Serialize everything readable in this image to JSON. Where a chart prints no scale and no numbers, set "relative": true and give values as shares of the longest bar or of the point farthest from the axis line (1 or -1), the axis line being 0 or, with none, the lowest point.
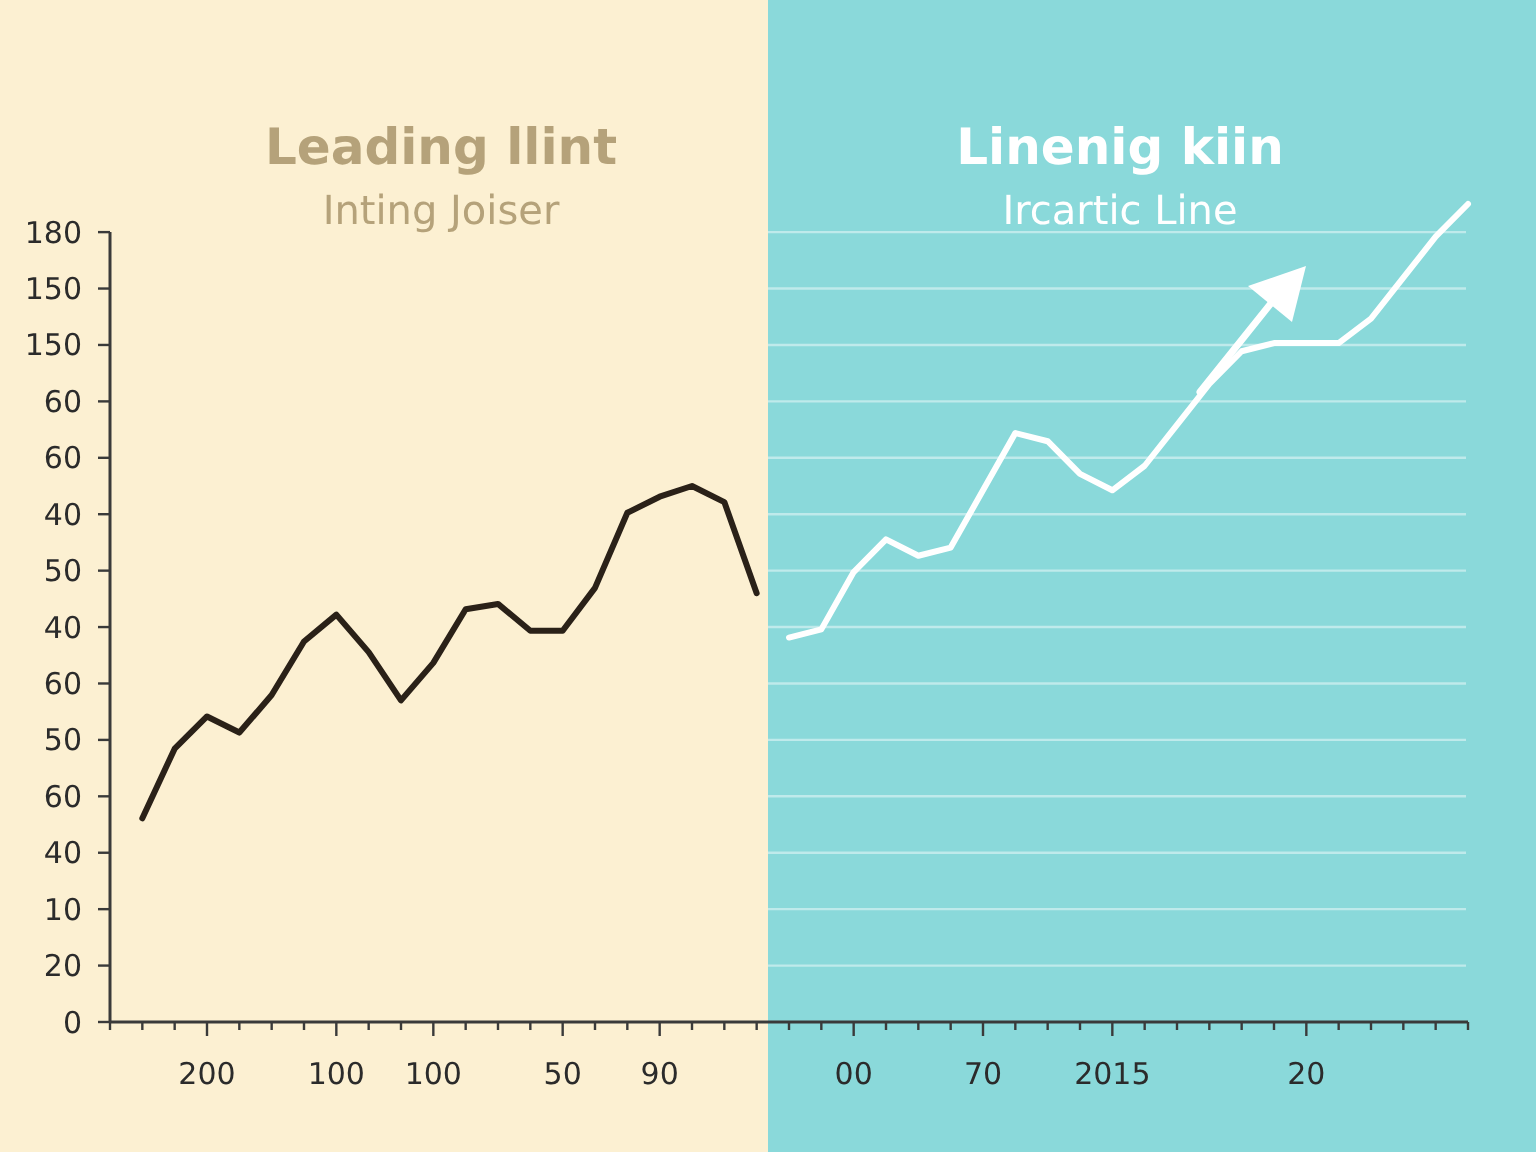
{
  "chart_data": [
    {
      "type": "line",
      "title": "Leading llint",
      "subtitle": "Inting Joiser",
      "relative": true,
      "categories": [
        null,
        null,
        null,
        "200",
        null,
        null,
        null,
        "100",
        null,
        null,
        "100",
        null,
        null,
        null,
        "50",
        null,
        null,
        "90",
        null,
        null,
        null
      ],
      "annotations": [
        "0",
        "20",
        "10",
        "40",
        "60",
        "50",
        "60",
        "40",
        "50",
        "40",
        "60",
        "60",
        "150",
        "150",
        "180"
      ],
      "series": [
        {
          "color": "#2a2118",
          "values": [
            null,
            0.38,
            0.51,
            0.57,
            0.54,
            0.61,
            0.71,
            0.76,
            0.69,
            0.6,
            0.67,
            0.77,
            0.78,
            0.73,
            0.73,
            0.81,
            0.95,
            0.98,
            1,
            0.97,
            0.8
          ]
        }
      ]
    },
    {
      "type": "line",
      "title": "Linenig kiin",
      "subtitle": "Ircartic Line",
      "relative": true,
      "grid": "y",
      "categories": [
        null,
        null,
        "00",
        null,
        null,
        null,
        "70",
        null,
        null,
        null,
        "2015",
        null,
        null,
        null,
        null,
        null,
        "20",
        null,
        null,
        null,
        null,
        null
      ],
      "series": [
        {
          "color": "#ffffff",
          "values": [
            0.47,
            0.48,
            0.55,
            0.59,
            0.57,
            0.58,
            0.65,
            0.72,
            0.71,
            0.67,
            0.65,
            0.68,
            0.73,
            0.78,
            0.82,
            0.83,
            0.83,
            0.83,
            0.86,
            0.91,
            0.96,
            1
          ]
        }
      ]
    }
  ]
}
